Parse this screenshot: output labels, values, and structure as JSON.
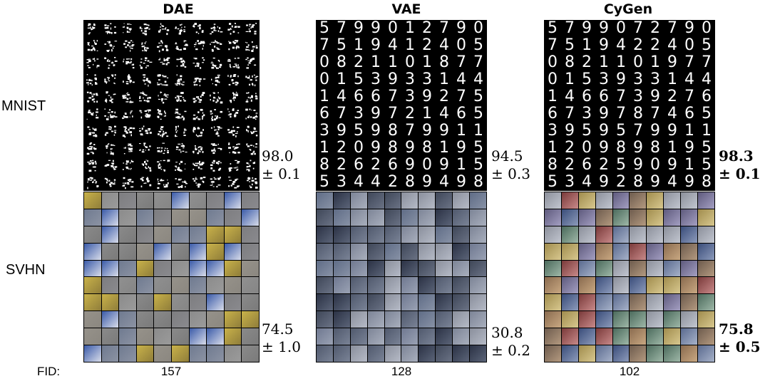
{
  "columns": [
    {
      "title": "DAE"
    },
    {
      "title": "VAE"
    },
    {
      "title": "CyGen"
    }
  ],
  "rows": [
    {
      "label": "MNIST"
    },
    {
      "label": "SVHN"
    }
  ],
  "mnist_digits": {
    "vae": [
      "5",
      "7",
      "9",
      "9",
      "0",
      "1",
      "2",
      "7",
      "9",
      "0",
      "7",
      "5",
      "1",
      "9",
      "4",
      "1",
      "2",
      "4",
      "0",
      "5",
      "0",
      "8",
      "2",
      "1",
      "1",
      "0",
      "1",
      "8",
      "7",
      "7",
      "0",
      "1",
      "5",
      "3",
      "9",
      "3",
      "3",
      "1",
      "4",
      "4",
      "1",
      "4",
      "6",
      "6",
      "7",
      "3",
      "9",
      "2",
      "7",
      "5",
      "6",
      "7",
      "3",
      "9",
      "7",
      "2",
      "1",
      "4",
      "6",
      "5",
      "3",
      "9",
      "5",
      "9",
      "8",
      "7",
      "9",
      "9",
      "1",
      "1",
      "1",
      "2",
      "0",
      "9",
      "8",
      "9",
      "8",
      "1",
      "9",
      "5",
      "8",
      "2",
      "6",
      "2",
      "6",
      "9",
      "0",
      "9",
      "1",
      "5",
      "5",
      "3",
      "4",
      "4",
      "2",
      "8",
      "9",
      "4",
      "9",
      "8"
    ],
    "cygen": [
      "5",
      "7",
      "9",
      "9",
      "0",
      "7",
      "2",
      "7",
      "9",
      "0",
      "7",
      "5",
      "1",
      "9",
      "4",
      "2",
      "2",
      "4",
      "0",
      "5",
      "0",
      "8",
      "2",
      "1",
      "1",
      "0",
      "1",
      "9",
      "7",
      "7",
      "0",
      "1",
      "5",
      "3",
      "9",
      "3",
      "3",
      "1",
      "4",
      "4",
      "1",
      "4",
      "6",
      "6",
      "7",
      "3",
      "9",
      "2",
      "7",
      "6",
      "6",
      "7",
      "3",
      "9",
      "7",
      "8",
      "7",
      "4",
      "6",
      "5",
      "3",
      "9",
      "5",
      "9",
      "5",
      "7",
      "9",
      "9",
      "1",
      "1",
      "1",
      "2",
      "0",
      "9",
      "8",
      "9",
      "8",
      "1",
      "9",
      "5",
      "8",
      "2",
      "6",
      "2",
      "5",
      "9",
      "0",
      "9",
      "1",
      "5",
      "5",
      "3",
      "4",
      "9",
      "2",
      "8",
      "9",
      "4",
      "9",
      "8"
    ]
  },
  "metrics": {
    "dae_mnist": {
      "mean": "98.0",
      "std": "± 0.1"
    },
    "vae_mnist": {
      "mean": "94.5",
      "std": "± 0.3"
    },
    "cygen_mnist": {
      "mean": "98.3",
      "std": "± 0.1"
    },
    "dae_svhn": {
      "mean": "74.5",
      "std": "± 1.0"
    },
    "vae_svhn": {
      "mean": "30.8",
      "std": "± 0.2"
    },
    "cygen_svhn": {
      "mean": "75.8",
      "std": "± 0.5"
    }
  },
  "fid": {
    "label": "FID:",
    "dae": "157",
    "vae": "128",
    "cygen": "102"
  }
}
